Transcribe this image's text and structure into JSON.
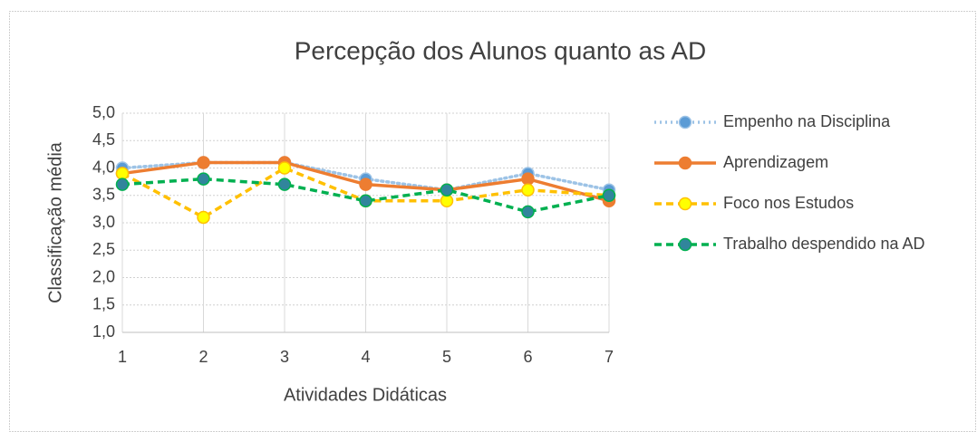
{
  "chart_data": {
    "type": "line",
    "title": "Percepção dos Alunos quanto as AD",
    "x_label": "Atividades Didáticas",
    "y_label": "Classificação média",
    "x": [
      1,
      2,
      3,
      4,
      5,
      6,
      7
    ],
    "xlim": [
      1,
      7
    ],
    "xticks": [
      1,
      2,
      3,
      4,
      5,
      6,
      7
    ],
    "ylim": [
      1,
      5
    ],
    "yticks": [
      {
        "value": 1,
        "label": "1,0"
      },
      {
        "value": 1.5,
        "label": "1,5"
      },
      {
        "value": 2,
        "label": "2,0"
      },
      {
        "value": 2.5,
        "label": "2,5"
      },
      {
        "value": 3,
        "label": "3,0"
      },
      {
        "value": 3.5,
        "label": "3,5"
      },
      {
        "value": 4,
        "label": "4,0"
      },
      {
        "value": 4.5,
        "label": "4,5"
      },
      {
        "value": 5,
        "label": "5,0"
      }
    ],
    "grid": true,
    "legend": "right",
    "series": [
      {
        "name": "Empenho na Disciplina",
        "color": "#9dc3e6",
        "marker_color": "#5b9bd5",
        "line_style": "dotted",
        "values": [
          4.0,
          4.1,
          4.1,
          3.8,
          3.6,
          3.9,
          3.6
        ]
      },
      {
        "name": "Aprendizagem",
        "color": "#ed7d31",
        "marker_color": "#ed7d31",
        "line_style": "solid",
        "values": [
          3.9,
          4.1,
          4.1,
          3.7,
          3.6,
          3.8,
          3.4
        ]
      },
      {
        "name": "Foco nos Estudos",
        "color": "#ffc000",
        "marker_color": "#ffff00",
        "line_style": "dashed",
        "values": [
          3.9,
          3.1,
          4.0,
          3.4,
          3.4,
          3.6,
          3.5
        ]
      },
      {
        "name": "Trabalho despendido na AD",
        "color": "#00b050",
        "marker_color": "#31859c",
        "line_style": "dashed",
        "values": [
          3.7,
          3.8,
          3.7,
          3.4,
          3.6,
          3.2,
          3.5
        ]
      }
    ]
  }
}
